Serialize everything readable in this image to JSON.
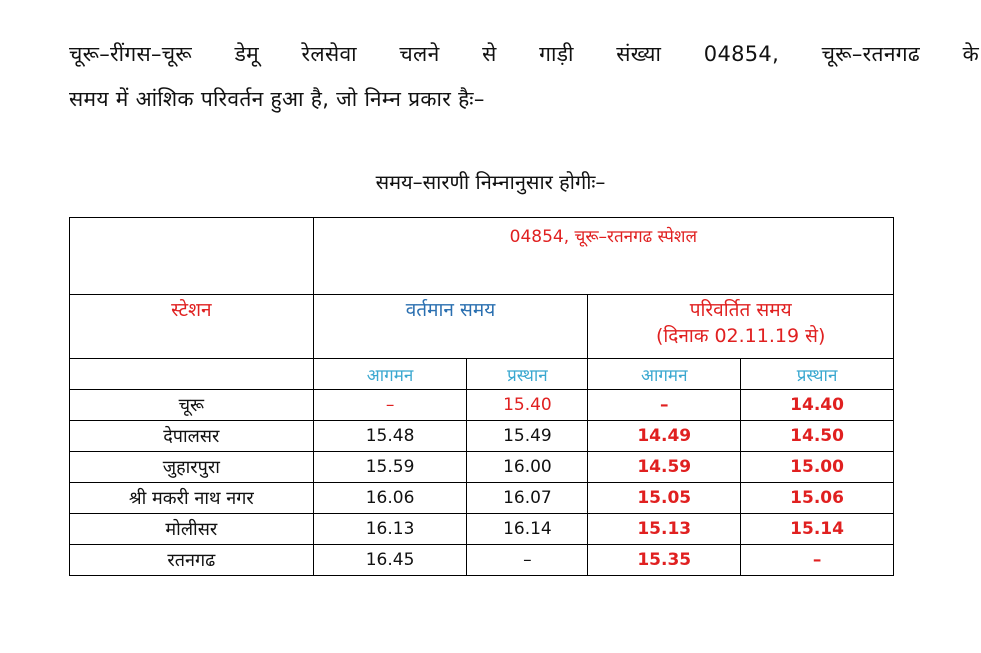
{
  "intro": {
    "line1": "चूरू–रींगस–चूरू डेमू रेलसेवा चलने से गाड़ी संख्या 04854, चूरू–रतनगढ के",
    "line2": "समय में आंशिक परिवर्तन हुआ है, जो निम्न प्रकार हैः–"
  },
  "subtitle": "समय–सारणी निम्नानुसार होगीः–",
  "table": {
    "train_title": "04854, चूरू–रतनगढ स्पेशल",
    "station_header": "स्टेशन",
    "current_header": "वर्तमान समय",
    "revised_header": "परिवर्तित समय",
    "revised_subheader": "(दिनाक 02.11.19 से)",
    "arrival": "आगमन",
    "departure": "प्रस्थान",
    "rows": [
      {
        "station": "चूरू",
        "cur_arr": "–",
        "cur_dep": "15.40",
        "new_arr": "–",
        "new_dep": "14.40"
      },
      {
        "station": "देपालसर",
        "cur_arr": "15.48",
        "cur_dep": "15.49",
        "new_arr": "14.49",
        "new_dep": "14.50"
      },
      {
        "station": "जुहारपुरा",
        "cur_arr": "15.59",
        "cur_dep": "16.00",
        "new_arr": "14.59",
        "new_dep": "15.00"
      },
      {
        "station": "श्री मकरी नाथ नगर",
        "cur_arr": "16.06",
        "cur_dep": "16.07",
        "new_arr": "15.05",
        "new_dep": "15.06"
      },
      {
        "station": "मोलीसर",
        "cur_arr": "16.13",
        "cur_dep": "16.14",
        "new_arr": "15.13",
        "new_dep": "15.14"
      },
      {
        "station": "रतनगढ",
        "cur_arr": "16.45",
        "cur_dep": "–",
        "new_arr": "15.35",
        "new_dep": "–"
      }
    ]
  },
  "colors": {
    "header_red": "#e02020",
    "header_blue": "#2a6fb0",
    "subheader_cyan": "#3aa8d0"
  }
}
